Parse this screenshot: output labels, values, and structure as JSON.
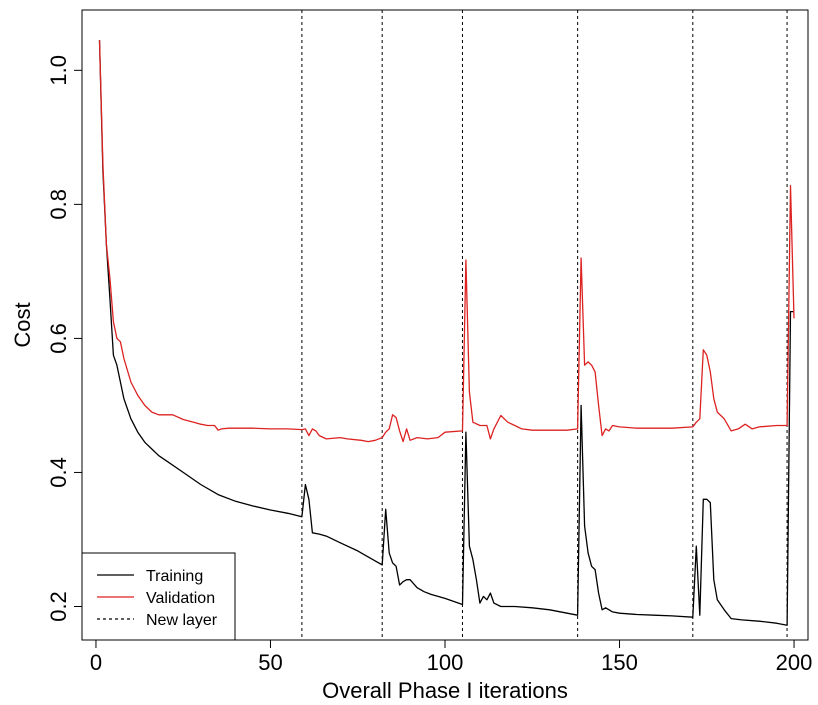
{
  "chart_data": {
    "type": "line",
    "title": "",
    "xlabel": "Overall Phase I iterations",
    "ylabel": "Cost",
    "xlim": [
      -4,
      204
    ],
    "ylim": [
      0.15,
      1.09
    ],
    "x_ticks": [
      0,
      50,
      100,
      150,
      200
    ],
    "y_ticks": [
      0.2,
      0.4,
      0.6,
      0.8,
      1.0
    ],
    "y_tick_labels": [
      "0.2",
      "0.4",
      "0.6",
      "0.8",
      "1.0"
    ],
    "grid": false,
    "legend_position": "bottom-left",
    "new_layer_x": [
      59,
      82,
      105,
      138,
      171,
      198
    ],
    "series": [
      {
        "name": "Training",
        "color": "#000000",
        "line_style": "solid",
        "points": [
          [
            1,
            1.045
          ],
          [
            2,
            0.85
          ],
          [
            3,
            0.74
          ],
          [
            4,
            0.66
          ],
          [
            5,
            0.575
          ],
          [
            6,
            0.56
          ],
          [
            7,
            0.535
          ],
          [
            8,
            0.51
          ],
          [
            10,
            0.48
          ],
          [
            12,
            0.46
          ],
          [
            14,
            0.445
          ],
          [
            16,
            0.435
          ],
          [
            18,
            0.425
          ],
          [
            20,
            0.418
          ],
          [
            25,
            0.4
          ],
          [
            30,
            0.382
          ],
          [
            35,
            0.367
          ],
          [
            40,
            0.357
          ],
          [
            45,
            0.35
          ],
          [
            50,
            0.344
          ],
          [
            55,
            0.339
          ],
          [
            59,
            0.334
          ],
          [
            60,
            0.382
          ],
          [
            61,
            0.36
          ],
          [
            62,
            0.31
          ],
          [
            64,
            0.308
          ],
          [
            66,
            0.305
          ],
          [
            70,
            0.295
          ],
          [
            75,
            0.283
          ],
          [
            80,
            0.268
          ],
          [
            82,
            0.262
          ],
          [
            83,
            0.345
          ],
          [
            84,
            0.28
          ],
          [
            85,
            0.265
          ],
          [
            86,
            0.26
          ],
          [
            87,
            0.232
          ],
          [
            88,
            0.237
          ],
          [
            89,
            0.24
          ],
          [
            90,
            0.24
          ],
          [
            92,
            0.228
          ],
          [
            94,
            0.222
          ],
          [
            96,
            0.218
          ],
          [
            100,
            0.212
          ],
          [
            105,
            0.203
          ],
          [
            106,
            0.46
          ],
          [
            107,
            0.29
          ],
          [
            108,
            0.27
          ],
          [
            109,
            0.24
          ],
          [
            110,
            0.205
          ],
          [
            111,
            0.215
          ],
          [
            112,
            0.21
          ],
          [
            113,
            0.22
          ],
          [
            114,
            0.205
          ],
          [
            116,
            0.2
          ],
          [
            120,
            0.2
          ],
          [
            125,
            0.198
          ],
          [
            130,
            0.195
          ],
          [
            135,
            0.19
          ],
          [
            138,
            0.187
          ],
          [
            139,
            0.5
          ],
          [
            140,
            0.32
          ],
          [
            141,
            0.28
          ],
          [
            142,
            0.26
          ],
          [
            143,
            0.255
          ],
          [
            144,
            0.22
          ],
          [
            145,
            0.195
          ],
          [
            146,
            0.198
          ],
          [
            147,
            0.195
          ],
          [
            148,
            0.192
          ],
          [
            150,
            0.19
          ],
          [
            155,
            0.188
          ],
          [
            160,
            0.187
          ],
          [
            165,
            0.186
          ],
          [
            171,
            0.184
          ],
          [
            172,
            0.29
          ],
          [
            173,
            0.187
          ],
          [
            174,
            0.36
          ],
          [
            175,
            0.36
          ],
          [
            176,
            0.355
          ],
          [
            177,
            0.24
          ],
          [
            178,
            0.21
          ],
          [
            180,
            0.195
          ],
          [
            182,
            0.182
          ],
          [
            185,
            0.18
          ],
          [
            190,
            0.178
          ],
          [
            195,
            0.175
          ],
          [
            198,
            0.172
          ],
          [
            199,
            0.64
          ],
          [
            200,
            0.64
          ]
        ]
      },
      {
        "name": "Validation",
        "color": "#dd2222",
        "line_style": "solid",
        "points": [
          [
            1,
            1.045
          ],
          [
            2,
            0.86
          ],
          [
            3,
            0.74
          ],
          [
            4,
            0.69
          ],
          [
            5,
            0.625
          ],
          [
            6,
            0.6
          ],
          [
            7,
            0.595
          ],
          [
            8,
            0.57
          ],
          [
            10,
            0.535
          ],
          [
            12,
            0.515
          ],
          [
            14,
            0.5
          ],
          [
            16,
            0.49
          ],
          [
            18,
            0.486
          ],
          [
            20,
            0.486
          ],
          [
            22,
            0.486
          ],
          [
            25,
            0.479
          ],
          [
            28,
            0.475
          ],
          [
            30,
            0.472
          ],
          [
            32,
            0.47
          ],
          [
            34,
            0.47
          ],
          [
            35,
            0.463
          ],
          [
            36,
            0.465
          ],
          [
            38,
            0.466
          ],
          [
            40,
            0.466
          ],
          [
            45,
            0.466
          ],
          [
            50,
            0.465
          ],
          [
            55,
            0.465
          ],
          [
            59,
            0.464
          ],
          [
            60,
            0.465
          ],
          [
            61,
            0.455
          ],
          [
            62,
            0.465
          ],
          [
            63,
            0.462
          ],
          [
            64,
            0.455
          ],
          [
            66,
            0.45
          ],
          [
            70,
            0.452
          ],
          [
            72,
            0.45
          ],
          [
            76,
            0.448
          ],
          [
            78,
            0.446
          ],
          [
            80,
            0.448
          ],
          [
            82,
            0.452
          ],
          [
            83,
            0.46
          ],
          [
            84,
            0.465
          ],
          [
            85,
            0.486
          ],
          [
            86,
            0.482
          ],
          [
            87,
            0.462
          ],
          [
            88,
            0.446
          ],
          [
            89,
            0.465
          ],
          [
            90,
            0.448
          ],
          [
            92,
            0.452
          ],
          [
            95,
            0.45
          ],
          [
            98,
            0.452
          ],
          [
            100,
            0.46
          ],
          [
            105,
            0.462
          ],
          [
            106,
            0.717
          ],
          [
            107,
            0.52
          ],
          [
            108,
            0.475
          ],
          [
            110,
            0.47
          ],
          [
            112,
            0.47
          ],
          [
            113,
            0.45
          ],
          [
            114,
            0.465
          ],
          [
            116,
            0.485
          ],
          [
            118,
            0.475
          ],
          [
            120,
            0.47
          ],
          [
            122,
            0.465
          ],
          [
            125,
            0.463
          ],
          [
            130,
            0.463
          ],
          [
            135,
            0.463
          ],
          [
            138,
            0.465
          ],
          [
            139,
            0.72
          ],
          [
            140,
            0.56
          ],
          [
            141,
            0.565
          ],
          [
            142,
            0.56
          ],
          [
            143,
            0.55
          ],
          [
            144,
            0.5
          ],
          [
            145,
            0.455
          ],
          [
            146,
            0.465
          ],
          [
            147,
            0.462
          ],
          [
            148,
            0.47
          ],
          [
            150,
            0.468
          ],
          [
            155,
            0.466
          ],
          [
            160,
            0.466
          ],
          [
            165,
            0.466
          ],
          [
            171,
            0.468
          ],
          [
            172,
            0.475
          ],
          [
            173,
            0.48
          ],
          [
            174,
            0.583
          ],
          [
            175,
            0.575
          ],
          [
            176,
            0.55
          ],
          [
            177,
            0.51
          ],
          [
            178,
            0.49
          ],
          [
            180,
            0.48
          ],
          [
            182,
            0.462
          ],
          [
            184,
            0.465
          ],
          [
            186,
            0.472
          ],
          [
            188,
            0.465
          ],
          [
            190,
            0.468
          ],
          [
            195,
            0.47
          ],
          [
            198,
            0.47
          ],
          [
            199,
            0.828
          ],
          [
            200,
            0.63
          ]
        ]
      }
    ],
    "legend": {
      "entries": [
        {
          "label": "Training",
          "color": "#000000",
          "dash": "solid"
        },
        {
          "label": "Validation",
          "color": "#dd2222",
          "dash": "solid"
        },
        {
          "label": "New layer",
          "color": "#000000",
          "dash": "dotted"
        }
      ]
    }
  }
}
